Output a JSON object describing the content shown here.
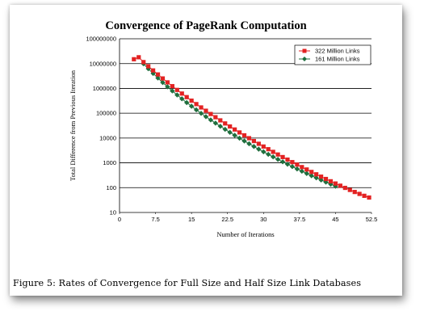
{
  "chart_data": {
    "type": "line",
    "title": "Convergence of PageRank Computation",
    "xlabel": "Number of Iterations",
    "ylabel": "Total Difference from Previous Iteration",
    "x_ticks": [
      "0",
      "7.5",
      "15",
      "22.5",
      "30",
      "37.5",
      "45",
      "52.5"
    ],
    "y_ticks": [
      "10",
      "100",
      "1000",
      "10000",
      "100000",
      "1000000",
      "10000000",
      "100000000"
    ],
    "xlim": [
      0,
      52.5
    ],
    "ylim": [
      10,
      100000000
    ],
    "y_scale": "log",
    "grid": "horizontal",
    "legend_position": "top-right",
    "series": [
      {
        "name": "322 Million Links",
        "color": "#e32222",
        "marker": "square",
        "x": [
          3,
          4,
          5,
          6,
          7,
          8,
          9,
          10,
          11,
          12,
          13,
          14,
          15,
          16,
          17,
          18,
          19,
          20,
          21,
          22,
          23,
          24,
          25,
          26,
          27,
          28,
          29,
          30,
          31,
          32,
          33,
          34,
          35,
          36,
          37,
          38,
          39,
          40,
          41,
          42,
          43,
          44,
          45,
          46,
          47,
          48,
          49,
          50,
          51,
          52
        ],
        "y": [
          15000000,
          18000000,
          11500000,
          7800000,
          5300000,
          3650000,
          2520000,
          1750000,
          1230000,
          870000,
          620000,
          445000,
          321000,
          233000,
          171000,
          126000,
          93000,
          69000,
          51500,
          38700,
          29200,
          22100,
          16800,
          12850,
          9850,
          7580,
          5860,
          4550,
          3550,
          2770,
          2170,
          1710,
          1350,
          1070,
          850,
          675,
          540,
          430,
          345,
          278,
          224,
          181,
          147,
          120,
          98,
          81,
          67,
          56,
          47,
          40
        ]
      },
      {
        "name": "161 Million Links",
        "color": "#1f6e3d",
        "marker": "diamond",
        "x": [
          5,
          6,
          7,
          8,
          9,
          10,
          11,
          12,
          13,
          14,
          15,
          16,
          17,
          18,
          19,
          20,
          21,
          22,
          23,
          24,
          25,
          26,
          27,
          28,
          29,
          30,
          31,
          32,
          33,
          34,
          35,
          36,
          37,
          38,
          39,
          40,
          41,
          42,
          43,
          44,
          45
        ],
        "y": [
          9800000,
          6200000,
          4000000,
          2620000,
          1730000,
          1160000,
          790000,
          545000,
          380000,
          268000,
          191000,
          137000,
          99000,
          72500,
          53500,
          39800,
          29800,
          22400,
          16950,
          12900,
          9880,
          7600,
          5870,
          4560,
          3560,
          2790,
          2200,
          1740,
          1380,
          1100,
          880,
          705,
          568,
          459,
          372,
          303,
          248,
          203,
          167,
          138,
          114
        ]
      }
    ]
  },
  "caption": "Figure 5:  Rates of Convergence for Full Size and Half Size Link Databases"
}
